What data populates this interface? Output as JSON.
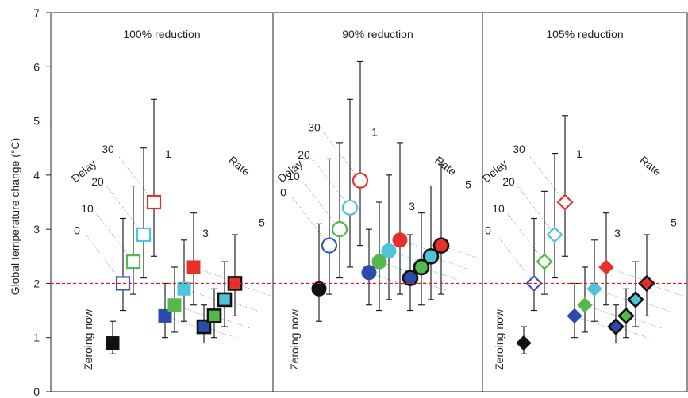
{
  "chart_data": {
    "type": "scatter",
    "ylabel": "Global temperature change (°C)",
    "ylim": [
      0,
      7
    ],
    "yticks": [
      "0",
      "1",
      "2",
      "3",
      "4",
      "5",
      "6",
      "7"
    ],
    "reference_line": {
      "y": 2,
      "color": "#e8141c",
      "style": "dashed"
    },
    "colors": {
      "zero": "#111111",
      "delay0": "#3b58b5",
      "delay10": "#52b94a",
      "delay20": "#4fc3d9",
      "delay30": "#e8302a",
      "rate1": "#e8302a",
      "rate3": "#4fc3d9",
      "rate5": "#52b94a",
      "rate_navy": "#2b4ba8"
    },
    "panels": [
      {
        "title": "100% reduction",
        "marker": "square",
        "zeroing_label": "Zeroing now",
        "group_labels": {
          "delay": "Delay",
          "rate": "Rate"
        },
        "delay_labels": [
          "0",
          "10",
          "20",
          "30"
        ],
        "rate_labels": [
          "1",
          "3",
          "5"
        ],
        "points": [
          {
            "group": "zero",
            "index": 0,
            "value": 0.9,
            "low": 0.7,
            "high": 1.3,
            "fill": "#111111",
            "edge": "#111111",
            "style": "solid"
          },
          {
            "group": "delay",
            "label": "0",
            "index": 1,
            "value": 2.0,
            "low": 1.5,
            "high": 3.2,
            "fill": "none",
            "edge": "#3b58b5",
            "style": "hollow"
          },
          {
            "group": "delay",
            "label": "10",
            "index": 2,
            "value": 2.4,
            "low": 1.8,
            "high": 3.8,
            "fill": "none",
            "edge": "#52b94a",
            "style": "hollow"
          },
          {
            "group": "delay",
            "label": "20",
            "index": 3,
            "value": 2.9,
            "low": 2.1,
            "high": 4.5,
            "fill": "none",
            "edge": "#4fc3d9",
            "style": "hollow"
          },
          {
            "group": "delay",
            "label": "30",
            "index": 4,
            "value": 3.5,
            "low": 2.5,
            "high": 5.4,
            "fill": "none",
            "edge": "#e8302a",
            "style": "hollow"
          },
          {
            "group": "delay",
            "index": 5,
            "value": 1.4,
            "low": 1.0,
            "high": 2.0,
            "fill": "#2b4ba8",
            "edge": "#2b4ba8",
            "style": "solid"
          },
          {
            "group": "delay",
            "index": 6,
            "value": 1.6,
            "low": 1.1,
            "high": 2.3,
            "fill": "#52b94a",
            "edge": "#52b94a",
            "style": "solid"
          },
          {
            "group": "delay",
            "index": 7,
            "value": 1.9,
            "low": 1.3,
            "high": 2.8,
            "fill": "#4fc3d9",
            "edge": "#4fc3d9",
            "style": "solid"
          },
          {
            "group": "delay",
            "index": 8,
            "value": 2.3,
            "low": 1.6,
            "high": 3.3,
            "fill": "#e8302a",
            "edge": "#e8302a",
            "style": "solid"
          },
          {
            "group": "rate",
            "index": 9,
            "value": 1.2,
            "low": 0.9,
            "high": 1.6,
            "fill": "#2b4ba8",
            "edge": "#111111",
            "style": "outlined"
          },
          {
            "group": "rate",
            "index": 10,
            "value": 1.4,
            "low": 1.0,
            "high": 1.9,
            "fill": "#52b94a",
            "edge": "#111111",
            "style": "outlined"
          },
          {
            "group": "rate",
            "index": 11,
            "value": 1.7,
            "low": 1.2,
            "high": 2.4,
            "fill": "#4fc3d9",
            "edge": "#111111",
            "style": "outlined"
          },
          {
            "group": "rate",
            "index": 12,
            "value": 2.0,
            "low": 1.4,
            "high": 2.9,
            "fill": "#e8302a",
            "edge": "#111111",
            "style": "outlined"
          }
        ]
      },
      {
        "title": "90% reduction",
        "marker": "circle",
        "zeroing_label": "Zeroing now",
        "group_labels": {
          "delay": "Delay",
          "rate": "Rate"
        },
        "delay_labels": [
          "0",
          "10",
          "20",
          "30"
        ],
        "rate_labels": [
          "1",
          "3",
          "5"
        ],
        "points": [
          {
            "group": "zero",
            "index": 0,
            "value": 1.9,
            "low": 1.3,
            "high": 3.1,
            "fill": "#111111",
            "edge": "#111111",
            "style": "solid"
          },
          {
            "group": "delay",
            "label": "0",
            "index": 1,
            "value": 2.7,
            "low": 1.8,
            "high": 4.3,
            "fill": "none",
            "edge": "#3b58b5",
            "style": "hollow"
          },
          {
            "group": "delay",
            "label": "10",
            "index": 2,
            "value": 3.0,
            "low": 2.1,
            "high": 4.6,
            "fill": "none",
            "edge": "#52b94a",
            "style": "hollow"
          },
          {
            "group": "delay",
            "label": "20",
            "index": 3,
            "value": 3.4,
            "low": 2.3,
            "high": 5.4,
            "fill": "none",
            "edge": "#4fc3d9",
            "style": "hollow"
          },
          {
            "group": "delay",
            "label": "30",
            "index": 4,
            "value": 3.9,
            "low": 2.7,
            "high": 6.1,
            "fill": "none",
            "edge": "#e8302a",
            "style": "hollow"
          },
          {
            "group": "delay",
            "index": 5,
            "value": 2.2,
            "low": 1.6,
            "high": 3.0,
            "fill": "#2b4ba8",
            "edge": "#2b4ba8",
            "style": "solid"
          },
          {
            "group": "delay",
            "index": 6,
            "value": 2.4,
            "low": 1.5,
            "high": 3.5,
            "fill": "#52b94a",
            "edge": "#52b94a",
            "style": "solid"
          },
          {
            "group": "delay",
            "index": 7,
            "value": 2.6,
            "low": 1.7,
            "high": 4.0,
            "fill": "#4fc3d9",
            "edge": "#4fc3d9",
            "style": "solid"
          },
          {
            "group": "delay",
            "index": 8,
            "value": 2.8,
            "low": 1.8,
            "high": 4.6,
            "fill": "#e8302a",
            "edge": "#e8302a",
            "style": "solid"
          },
          {
            "group": "rate",
            "index": 9,
            "value": 2.1,
            "low": 1.5,
            "high": 2.9,
            "fill": "#2b4ba8",
            "edge": "#111111",
            "style": "outlined"
          },
          {
            "group": "rate",
            "index": 10,
            "value": 2.3,
            "low": 1.6,
            "high": 3.3,
            "fill": "#52b94a",
            "edge": "#111111",
            "style": "outlined"
          },
          {
            "group": "rate",
            "index": 11,
            "value": 2.5,
            "low": 1.7,
            "high": 3.8,
            "fill": "#4fc3d9",
            "edge": "#111111",
            "style": "outlined"
          },
          {
            "group": "rate",
            "index": 12,
            "value": 2.7,
            "low": 1.8,
            "high": 4.2,
            "fill": "#e8302a",
            "edge": "#111111",
            "style": "outlined"
          }
        ]
      },
      {
        "title": "105% reduction",
        "marker": "diamond",
        "zeroing_label": "Zeroing now",
        "group_labels": {
          "delay": "Delay",
          "rate": "Rate"
        },
        "delay_labels": [
          "0",
          "10",
          "20",
          "30"
        ],
        "rate_labels": [
          "1",
          "3",
          "5"
        ],
        "points": [
          {
            "group": "zero",
            "index": 0,
            "value": 0.9,
            "low": 0.7,
            "high": 1.2,
            "fill": "#111111",
            "edge": "#111111",
            "style": "solid"
          },
          {
            "group": "delay",
            "label": "0",
            "index": 1,
            "value": 2.0,
            "low": 1.5,
            "high": 3.2,
            "fill": "none",
            "edge": "#3b58b5",
            "style": "hollow"
          },
          {
            "group": "delay",
            "label": "10",
            "index": 2,
            "value": 2.4,
            "low": 1.8,
            "high": 3.7,
            "fill": "none",
            "edge": "#52b94a",
            "style": "hollow"
          },
          {
            "group": "delay",
            "label": "20",
            "index": 3,
            "value": 2.9,
            "low": 2.1,
            "high": 4.4,
            "fill": "none",
            "edge": "#4fc3d9",
            "style": "hollow"
          },
          {
            "group": "delay",
            "label": "30",
            "index": 4,
            "value": 3.5,
            "low": 2.5,
            "high": 5.1,
            "fill": "none",
            "edge": "#e8302a",
            "style": "hollow"
          },
          {
            "group": "delay",
            "index": 5,
            "value": 1.4,
            "low": 1.0,
            "high": 2.0,
            "fill": "#2b4ba8",
            "edge": "#2b4ba8",
            "style": "solid"
          },
          {
            "group": "delay",
            "index": 6,
            "value": 1.6,
            "low": 1.1,
            "high": 2.3,
            "fill": "#52b94a",
            "edge": "#52b94a",
            "style": "solid"
          },
          {
            "group": "delay",
            "index": 7,
            "value": 1.9,
            "low": 1.3,
            "high": 2.8,
            "fill": "#4fc3d9",
            "edge": "#4fc3d9",
            "style": "solid"
          },
          {
            "group": "delay",
            "index": 8,
            "value": 2.3,
            "low": 1.6,
            "high": 3.3,
            "fill": "#e8302a",
            "edge": "#e8302a",
            "style": "solid"
          },
          {
            "group": "rate",
            "index": 9,
            "value": 1.2,
            "low": 0.9,
            "high": 1.6,
            "fill": "#2b4ba8",
            "edge": "#111111",
            "style": "outlined"
          },
          {
            "group": "rate",
            "index": 10,
            "value": 1.4,
            "low": 1.0,
            "high": 1.9,
            "fill": "#52b94a",
            "edge": "#111111",
            "style": "outlined"
          },
          {
            "group": "rate",
            "index": 11,
            "value": 1.7,
            "low": 1.2,
            "high": 2.4,
            "fill": "#4fc3d9",
            "edge": "#111111",
            "style": "outlined"
          },
          {
            "group": "rate",
            "index": 12,
            "value": 2.0,
            "low": 1.4,
            "high": 2.9,
            "fill": "#e8302a",
            "edge": "#111111",
            "style": "outlined"
          }
        ]
      }
    ]
  }
}
